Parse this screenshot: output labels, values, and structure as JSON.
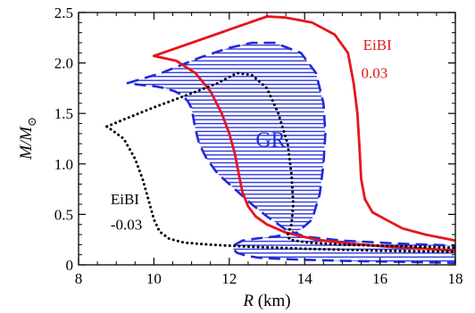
{
  "chart_data": {
    "type": "line",
    "xlabel": {
      "italic": "R",
      "unit": " (km)"
    },
    "ylabel": {
      "main": "M/M",
      "sub": "⊙"
    },
    "xlim": [
      8,
      18
    ],
    "ylim": [
      0,
      2.5
    ],
    "x_ticks": [
      8,
      10,
      12,
      14,
      16,
      18
    ],
    "y_ticks": [
      0,
      0.5,
      1.0,
      1.5,
      2.0,
      2.5
    ],
    "x_tick_labels": [
      "8",
      "10",
      "12",
      "14",
      "16",
      "18"
    ],
    "y_tick_labels": [
      "0",
      "0.5",
      "1.0",
      "1.5",
      "2.0",
      "2.5"
    ],
    "grid": false,
    "annotations": [
      {
        "text": "EiBI",
        "color": "#e8141c",
        "size": 17,
        "x": 15.55,
        "y": 2.13
      },
      {
        "text": "0.03",
        "color": "#e8141c",
        "size": 17,
        "x": 15.5,
        "y": 1.85
      },
      {
        "text": "GR",
        "color": "#1f2ad8",
        "size": 24,
        "x": 12.7,
        "y": 1.17
      },
      {
        "text": "EiBI",
        "color": "#000000",
        "size": 17,
        "x": 8.85,
        "y": 0.6
      },
      {
        "text": "-0.03",
        "color": "#000000",
        "size": 17,
        "x": 8.85,
        "y": 0.35
      }
    ],
    "series": [
      {
        "style": "dashed",
        "color": "#1f2ad8",
        "fill": "hatched-horizontal",
        "x": [
          9.3,
          10.2,
          11.2,
          12.0,
          12.6,
          13.2,
          13.9,
          14.3,
          14.5,
          14.55,
          14.5,
          14.4,
          14.2,
          13.8,
          13.2,
          12.7,
          12.35,
          12.15,
          12.1,
          12.2,
          12.45,
          12.8,
          13.3,
          14.0,
          15.0,
          16.5,
          18.0,
          18.0,
          16.5,
          15.0,
          14.0,
          13.5,
          13.0,
          12.6,
          12.15,
          11.7,
          11.4,
          11.2,
          11.1,
          11.05,
          11.0,
          10.9,
          10.75,
          10.55,
          10.3,
          10.0,
          9.7,
          9.3
        ],
        "y": [
          1.8,
          1.9,
          2.05,
          2.15,
          2.2,
          2.2,
          2.1,
          1.9,
          1.6,
          1.3,
          1.0,
          0.7,
          0.45,
          0.32,
          0.28,
          0.26,
          0.24,
          0.2,
          0.16,
          0.12,
          0.09,
          0.07,
          0.06,
          0.05,
          0.04,
          0.03,
          0.02,
          0.19,
          0.21,
          0.24,
          0.28,
          0.35,
          0.48,
          0.6,
          0.75,
          0.9,
          1.05,
          1.2,
          1.35,
          1.45,
          1.55,
          1.62,
          1.68,
          1.72,
          1.75,
          1.77,
          1.78,
          1.8
        ]
      },
      {
        "style": "solid",
        "color": "#e8141c",
        "x": [
          10.0,
          11.0,
          12.0,
          13.0,
          13.5,
          14.2,
          14.8,
          15.15,
          15.3,
          15.4,
          15.45,
          15.5,
          15.6,
          15.8,
          16.2,
          16.6,
          17.2,
          18.0
        ],
        "y": [
          2.07,
          2.2,
          2.33,
          2.46,
          2.45,
          2.4,
          2.28,
          2.1,
          1.8,
          1.5,
          1.2,
          0.85,
          0.65,
          0.52,
          0.44,
          0.36,
          0.3,
          0.24
        ]
      },
      {
        "style": "solid",
        "color": "#e8141c",
        "x": [
          10.0,
          10.6,
          11.1,
          11.5,
          11.8,
          12.0,
          12.15,
          12.25,
          12.35,
          12.5,
          12.7,
          13.0,
          13.5,
          14.3,
          15.2,
          16.2,
          17.2,
          18.0
        ],
        "y": [
          2.07,
          2.02,
          1.9,
          1.72,
          1.5,
          1.3,
          1.1,
          0.9,
          0.72,
          0.58,
          0.48,
          0.4,
          0.32,
          0.25,
          0.21,
          0.18,
          0.16,
          0.14
        ]
      },
      {
        "style": "dotted",
        "color": "#000000",
        "x": [
          8.75,
          9.2,
          10.0,
          11.0,
          11.7,
          12.2,
          12.6,
          13.0,
          13.3,
          13.55,
          13.65,
          13.7,
          13.65,
          13.55,
          13.6,
          14.1,
          15.0,
          16.0,
          17.0,
          18.0
        ],
        "y": [
          1.37,
          1.44,
          1.56,
          1.7,
          1.8,
          1.9,
          1.88,
          1.75,
          1.5,
          1.2,
          0.9,
          0.6,
          0.4,
          0.3,
          0.25,
          0.22,
          0.2,
          0.19,
          0.18,
          0.17
        ]
      },
      {
        "style": "dotted",
        "color": "#000000",
        "x": [
          8.75,
          9.2,
          9.5,
          9.7,
          9.85,
          10.0,
          10.15,
          10.4,
          10.8,
          11.5,
          12.5,
          14.0,
          16.0,
          18.0
        ],
        "y": [
          1.37,
          1.25,
          1.05,
          0.85,
          0.65,
          0.45,
          0.33,
          0.26,
          0.22,
          0.2,
          0.18,
          0.16,
          0.14,
          0.13
        ]
      }
    ]
  }
}
